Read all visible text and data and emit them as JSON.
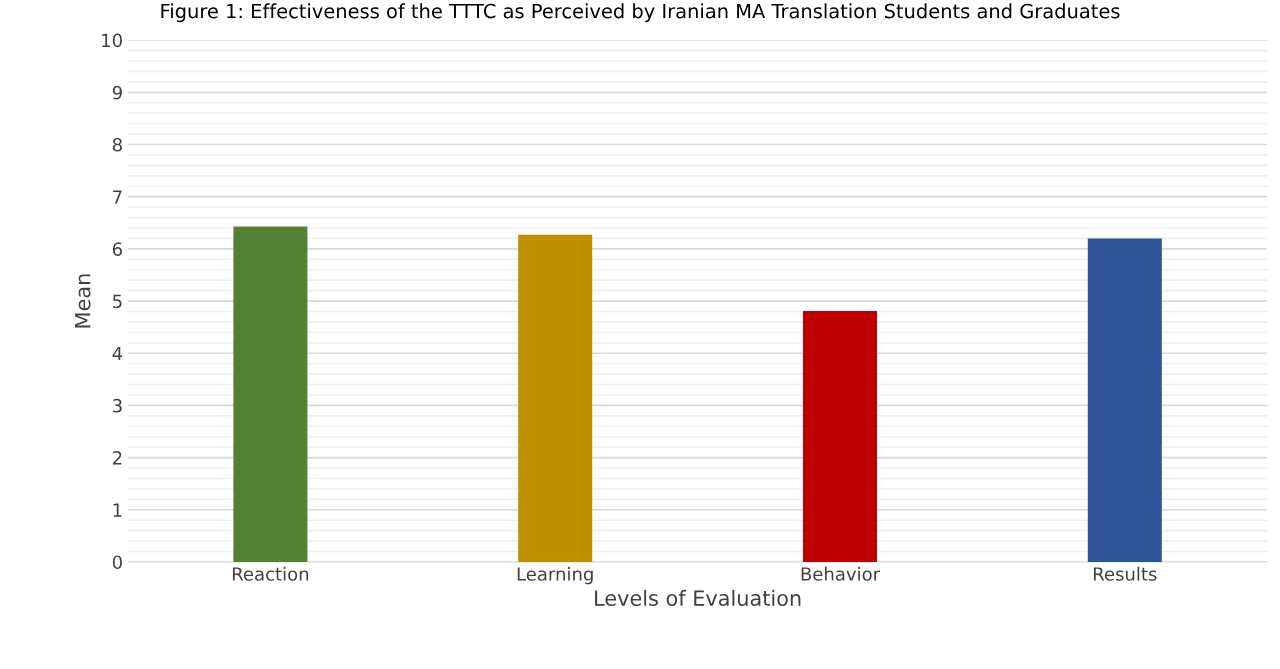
{
  "chart_data": {
    "type": "bar",
    "title": "Figure 1: Effectiveness of the TTTC as Perceived by Iranian MA Translation Students and Graduates",
    "xlabel": "Levels of Evaluation",
    "ylabel": "Mean",
    "categories": [
      "Reaction",
      "Learning",
      "Behavior",
      "Results"
    ],
    "values": [
      6.43,
      6.27,
      4.81,
      6.2
    ],
    "colors": [
      "#548235",
      "#bf9000",
      "#c00000",
      "#2f5597"
    ],
    "ylim": [
      0,
      10
    ],
    "yticks": [
      0,
      1,
      2,
      3,
      4,
      5,
      6,
      7,
      8,
      9,
      10
    ],
    "grid": "y"
  }
}
